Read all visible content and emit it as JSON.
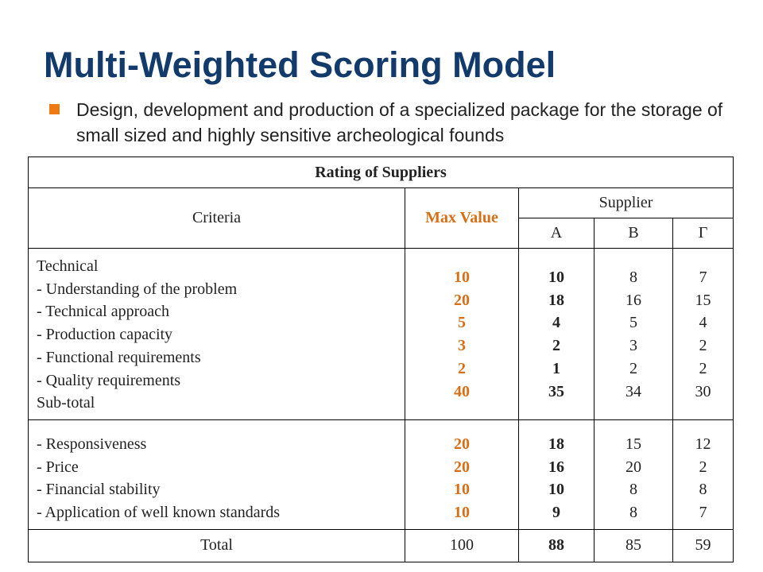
{
  "slide": {
    "title": "Multi-Weighted Scoring Model",
    "bullet": "Design, development and production of a specialized package for the storage of  small sized and highly sensitive archeological founds",
    "accent_color": "#f07a12",
    "title_color": "#123a6a"
  },
  "table": {
    "title": "Rating of Suppliers",
    "criteria_header": "Criteria",
    "max_value_header": "Max Value",
    "supplier_header": "Supplier",
    "suppliers": [
      "A",
      "B",
      "Γ"
    ],
    "technical": {
      "lines": [
        "Technical",
        "- Understanding of the problem",
        "- Technical approach",
        "- Production capacity",
        "- Functional requirements",
        "- Quality requirements",
        "Sub-total"
      ],
      "max_values": [
        "10",
        "20",
        "5",
        "3",
        "2",
        "40"
      ],
      "supplier_a": [
        "10",
        "18",
        "4",
        "2",
        "1",
        "35"
      ],
      "supplier_b": [
        "8",
        "16",
        "5",
        "3",
        "2",
        "34"
      ],
      "supplier_g": [
        "7",
        "15",
        "4",
        "2",
        "2",
        "30"
      ]
    },
    "other": {
      "lines": [
        "- Responsiveness",
        "- Price",
        "- Financial stability",
        "- Application of well known standards"
      ],
      "max_values": [
        "20",
        "20",
        "10",
        "10"
      ],
      "supplier_a": [
        "18",
        "16",
        "10",
        "9"
      ],
      "supplier_b": [
        "15",
        "20",
        "8",
        "8"
      ],
      "supplier_g": [
        "12",
        "2",
        "8",
        "7"
      ]
    },
    "total": {
      "label": "Total",
      "max_value": "100",
      "supplier_a": "88",
      "supplier_b": "85",
      "supplier_g": "59"
    }
  }
}
